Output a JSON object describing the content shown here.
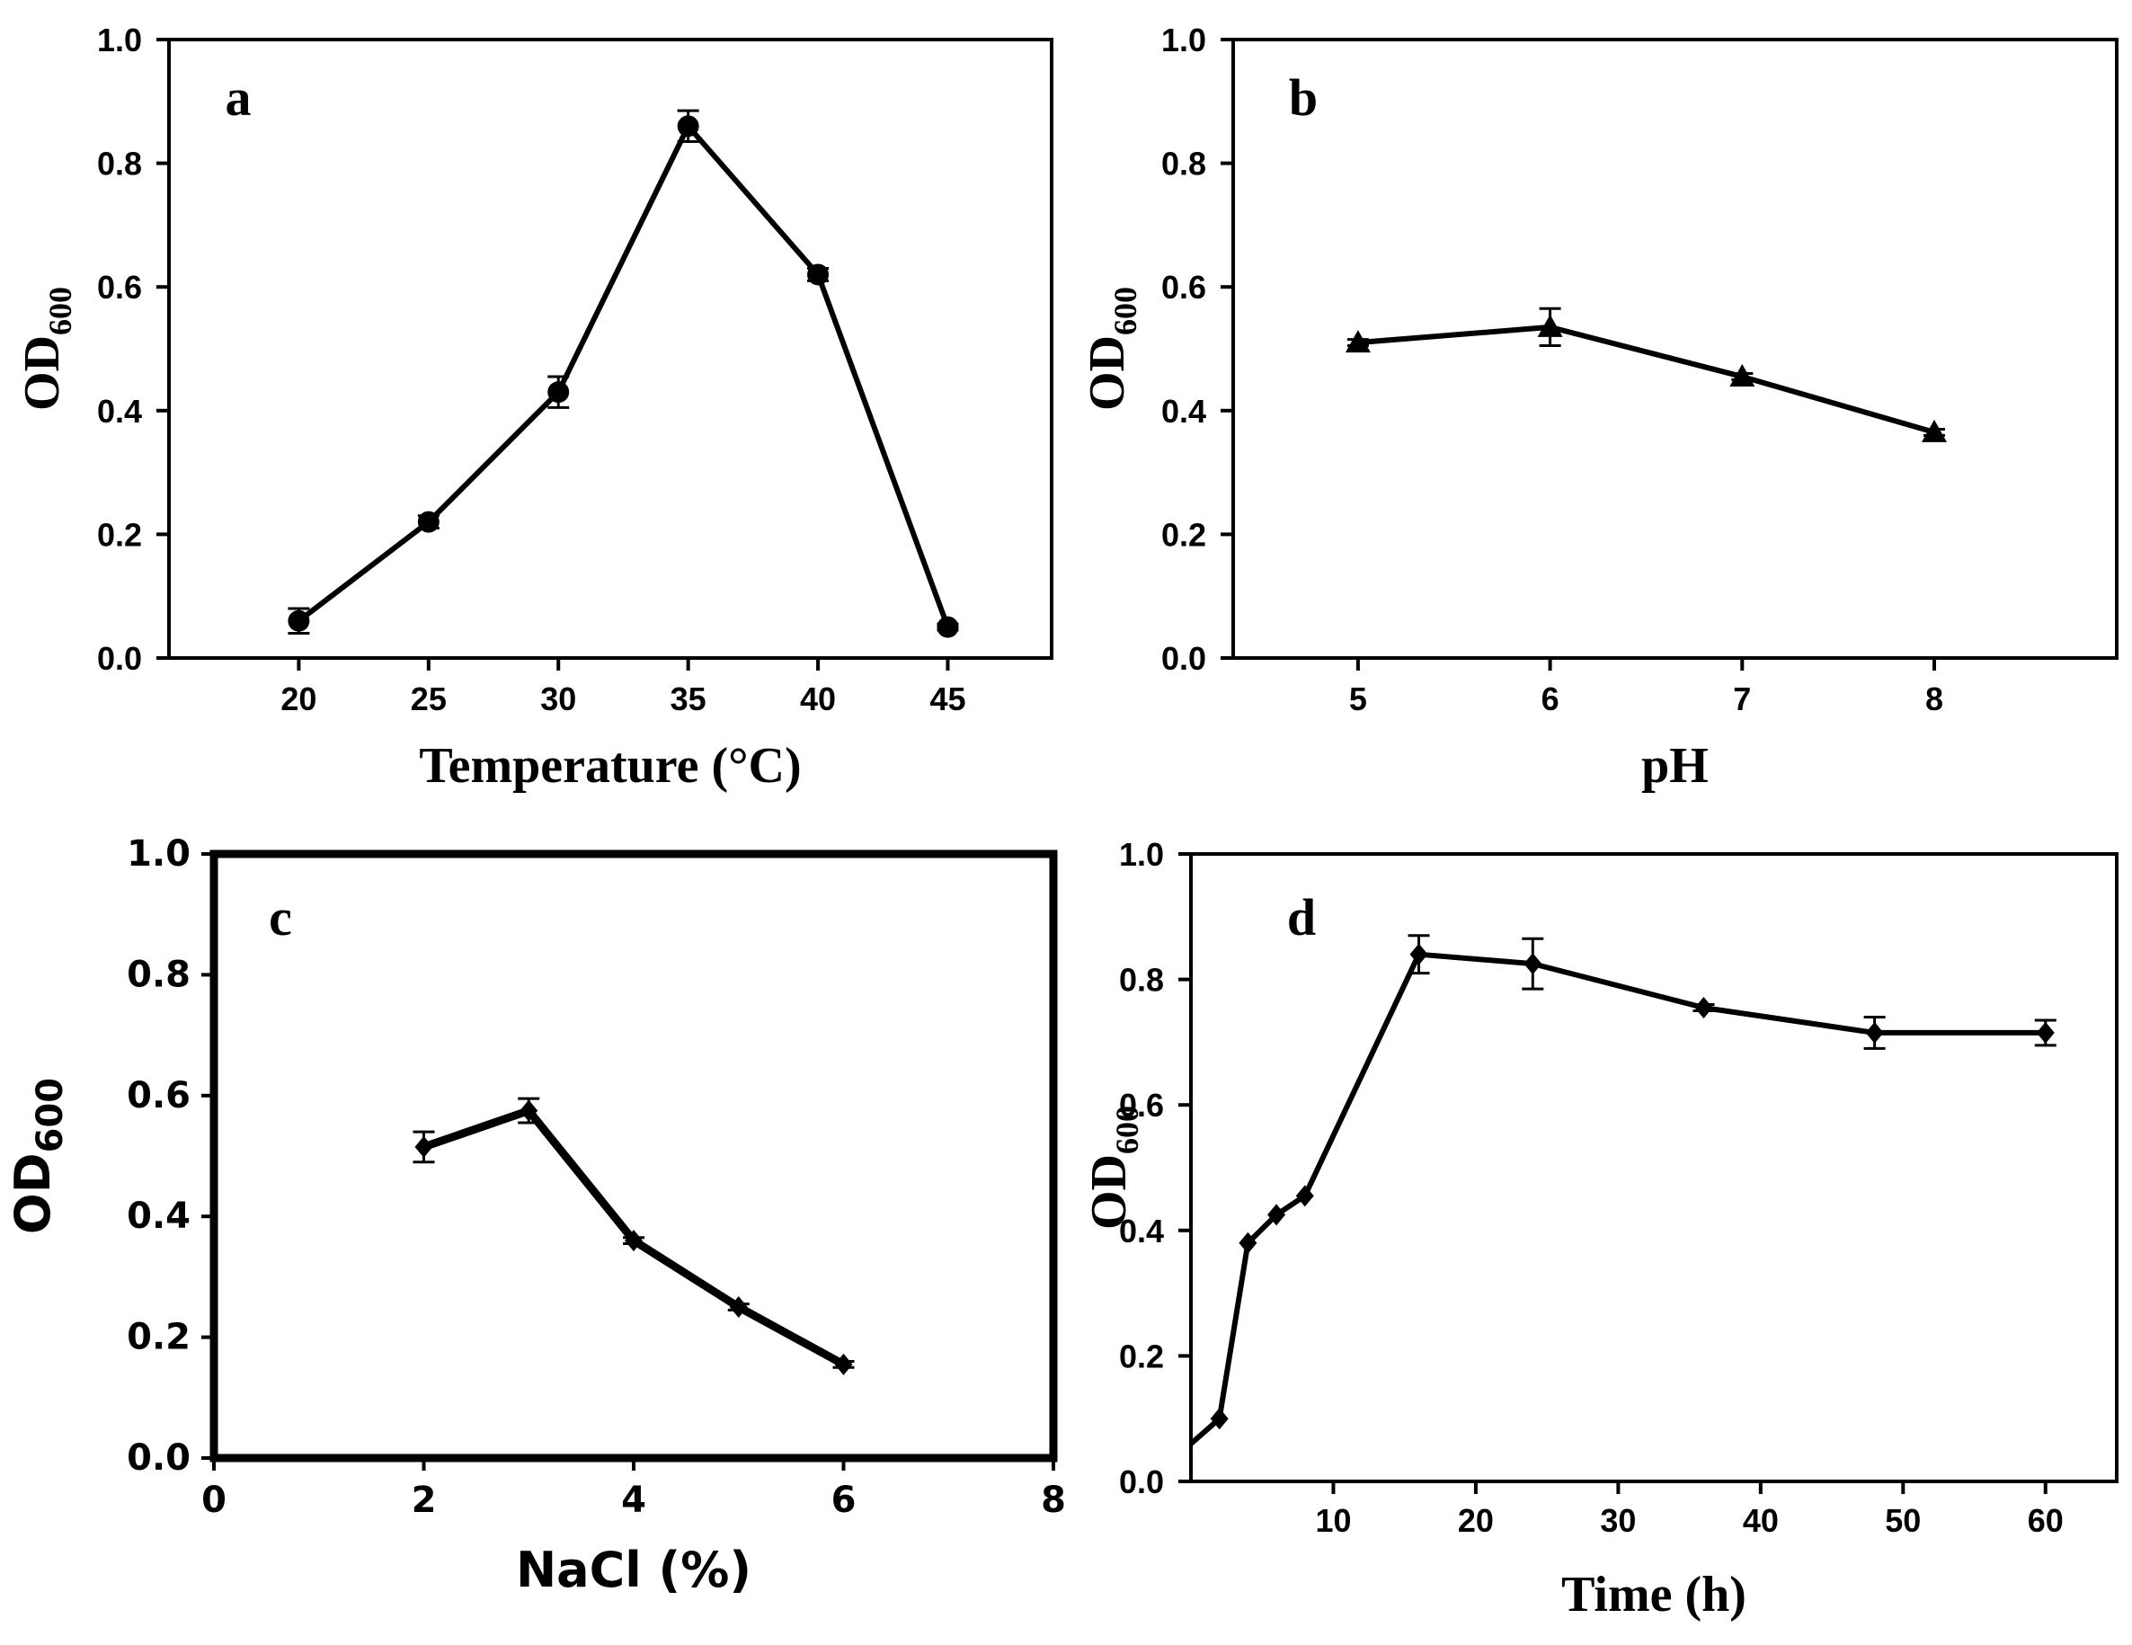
{
  "figure": {
    "ylabel_main": "OD",
    "ylabel_sub": "600"
  },
  "chart_data": [
    {
      "type": "line",
      "panel": "a",
      "xlabel": "Temperature (°C)",
      "ylabel": "OD600",
      "xlim": [
        15,
        49
      ],
      "ylim": [
        0,
        1.0
      ],
      "xticks": [
        20,
        25,
        30,
        35,
        40,
        45
      ],
      "yticks": [
        "0.0",
        "0.2",
        "0.4",
        "0.6",
        "0.8",
        "1.0"
      ],
      "marker": "circle",
      "x": [
        20,
        25,
        30,
        35,
        40,
        45
      ],
      "y": [
        0.06,
        0.22,
        0.43,
        0.86,
        0.62,
        0.05
      ],
      "err": [
        0.02,
        0.01,
        0.025,
        0.025,
        0.01,
        0.005
      ]
    },
    {
      "type": "line",
      "panel": "b",
      "xlabel": "pH",
      "ylabel": "OD600",
      "xlim": [
        4.35,
        8.95
      ],
      "ylim": [
        0,
        1.0
      ],
      "xticks": [
        5,
        6,
        7,
        8
      ],
      "yticks": [
        "0.0",
        "0.2",
        "0.4",
        "0.6",
        "0.8",
        "1.0"
      ],
      "marker": "triangle",
      "x": [
        5,
        6,
        7,
        8
      ],
      "y": [
        0.51,
        0.535,
        0.455,
        0.365
      ],
      "err": [
        0.005,
        0.03,
        0.005,
        0.005
      ]
    },
    {
      "type": "line",
      "panel": "c",
      "xlabel": "NaCl (%)",
      "ylabel": "OD600",
      "xlim": [
        0,
        8
      ],
      "ylim": [
        0,
        1.0
      ],
      "xticks": [
        0,
        2,
        4,
        6,
        8
      ],
      "yticks": [
        "0.0",
        "0.2",
        "0.4",
        "0.6",
        "0.8",
        "1.0"
      ],
      "marker": "diamond",
      "x": [
        2,
        3,
        4,
        5,
        6
      ],
      "y": [
        0.515,
        0.575,
        0.36,
        0.25,
        0.155
      ],
      "err": [
        0.025,
        0.02,
        0.005,
        0.005,
        0.005
      ]
    },
    {
      "type": "line",
      "panel": "d",
      "xlabel": "Time (h)",
      "ylabel": "OD600",
      "xlim": [
        0,
        65
      ],
      "ylim": [
        0,
        1.0
      ],
      "xticks": [
        10,
        20,
        30,
        40,
        50,
        60
      ],
      "yticks": [
        "0.0",
        "0.2",
        "0.4",
        "0.6",
        "0.8",
        "1.0"
      ],
      "marker": "diamond",
      "x": [
        0,
        2,
        4,
        6,
        8,
        16,
        24,
        36,
        48,
        60
      ],
      "y": [
        0.06,
        0.1,
        0.38,
        0.425,
        0.455,
        0.84,
        0.825,
        0.755,
        0.715,
        0.715
      ],
      "err": [
        0,
        0,
        0,
        0,
        0,
        0.03,
        0.04,
        0.005,
        0.025,
        0.02
      ]
    }
  ]
}
